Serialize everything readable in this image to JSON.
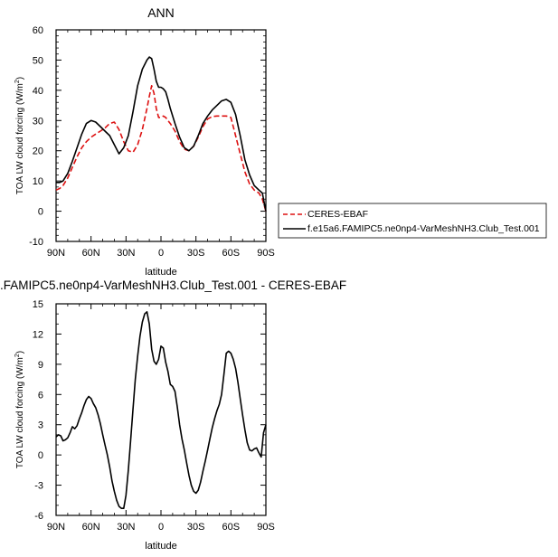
{
  "chart_data": [
    {
      "type": "line",
      "title": "ANN",
      "xlabel": "latitude",
      "ylabel_main": "TOA LW cloud forcing (W/m",
      "ylabel_sup": "2",
      "ylabel_close": ")",
      "xlim": [
        -90,
        90
      ],
      "ylim": [
        -10,
        60
      ],
      "x_ticks": [
        -90,
        -60,
        -30,
        0,
        30,
        60,
        90
      ],
      "x_tick_labels": [
        "90N",
        "60N",
        "30N",
        "0",
        "30S",
        "60S",
        "90S"
      ],
      "y_ticks": [
        -10,
        0,
        10,
        20,
        30,
        40,
        50,
        60
      ],
      "y_tick_labels": [
        "-10",
        "0",
        "10",
        "20",
        "30",
        "40",
        "50",
        "60"
      ],
      "legend_placement": "right, outside plot",
      "series": [
        {
          "name": "CERES-EBAF",
          "color": "#dd1111",
          "dash": "dashed",
          "x": [
            -90,
            -87,
            -84,
            -80,
            -76,
            -72,
            -68,
            -64,
            -60,
            -56,
            -52,
            -48,
            -44,
            -40,
            -36,
            -32,
            -28,
            -24,
            -20,
            -16,
            -12,
            -10,
            -8,
            -6,
            -4,
            -2,
            0,
            2,
            4,
            6,
            8,
            12,
            16,
            20,
            24,
            28,
            32,
            36,
            40,
            44,
            48,
            52,
            56,
            60,
            64,
            68,
            72,
            76,
            80,
            84,
            87,
            90
          ],
          "y": [
            7,
            7.5,
            8.5,
            11,
            14.5,
            18,
            21,
            23,
            24.5,
            25.5,
            26.5,
            27.5,
            29,
            29.5,
            27,
            23,
            20,
            19.5,
            22,
            27,
            34,
            38,
            41.5,
            39,
            34,
            31,
            31,
            31.5,
            31,
            30,
            29,
            26.5,
            23,
            20.5,
            20,
            21.5,
            24.5,
            28,
            30.5,
            31.3,
            31.5,
            31.5,
            31.5,
            31,
            25,
            19,
            13,
            9,
            7,
            6,
            4,
            0
          ]
        },
        {
          "name": "f.e15a6.FAMIPC5.ne0np4-VarMeshNH3.Club_Test.001",
          "color": "#000000",
          "dash": "solid",
          "x": [
            -90,
            -87,
            -84,
            -80,
            -76,
            -72,
            -68,
            -64,
            -60,
            -56,
            -52,
            -48,
            -44,
            -40,
            -36,
            -32,
            -28,
            -24,
            -20,
            -16,
            -12,
            -10,
            -8,
            -6,
            -4,
            -2,
            0,
            2,
            4,
            6,
            8,
            12,
            16,
            20,
            24,
            28,
            32,
            36,
            40,
            44,
            48,
            52,
            56,
            60,
            64,
            68,
            72,
            76,
            80,
            84,
            87,
            90
          ],
          "y": [
            9.5,
            9.5,
            10,
            12.5,
            16.5,
            21,
            25.5,
            29,
            30,
            29.5,
            28,
            26.5,
            25,
            22,
            19,
            21,
            25,
            33,
            41.5,
            47,
            50,
            51,
            50.5,
            47,
            43,
            41,
            41,
            40.5,
            39.5,
            37,
            34,
            29,
            24.5,
            21,
            20,
            21.5,
            25,
            29,
            31.5,
            33.5,
            35,
            36.5,
            37,
            36,
            32,
            25,
            17,
            12,
            8.5,
            7,
            6,
            0
          ]
        }
      ]
    },
    {
      "type": "line",
      "title": ".FAMIPC5.ne0np4-VarMeshNH3.Club_Test.001 - CERES-EBAF",
      "xlabel": "latitude",
      "ylabel_main": "TOA LW cloud forcing (W/m",
      "ylabel_sup": "2",
      "ylabel_close": ")",
      "xlim": [
        -90,
        90
      ],
      "ylim": [
        -6,
        15
      ],
      "x_ticks": [
        -90,
        -60,
        -30,
        0,
        30,
        60,
        90
      ],
      "x_tick_labels": [
        "90N",
        "60N",
        "30N",
        "0",
        "30S",
        "60S",
        "90S"
      ],
      "y_ticks": [
        -6,
        -3,
        0,
        3,
        6,
        9,
        12,
        15
      ],
      "y_tick_labels": [
        "-6",
        "-3",
        "0",
        "3",
        "6",
        "9",
        "12",
        "15"
      ],
      "series": [
        {
          "color": "#000000",
          "dash": "solid",
          "x": [
            -90,
            -88,
            -86,
            -84,
            -82,
            -80,
            -78,
            -76,
            -74,
            -72,
            -70,
            -68,
            -66,
            -64,
            -62,
            -60,
            -58,
            -56,
            -54,
            -52,
            -50,
            -48,
            -46,
            -44,
            -42,
            -40,
            -38,
            -36,
            -34,
            -32,
            -30,
            -28,
            -26,
            -24,
            -22,
            -20,
            -18,
            -16,
            -14,
            -12,
            -10,
            -8,
            -6,
            -4,
            -2,
            0,
            2,
            4,
            6,
            8,
            10,
            12,
            14,
            16,
            18,
            20,
            22,
            24,
            26,
            28,
            30,
            32,
            34,
            36,
            38,
            40,
            42,
            44,
            46,
            48,
            50,
            52,
            54,
            56,
            58,
            60,
            62,
            64,
            66,
            68,
            70,
            72,
            74,
            76,
            78,
            80,
            82,
            84,
            86,
            88,
            90
          ],
          "y": [
            1.8,
            2.0,
            1.9,
            1.4,
            1.5,
            1.7,
            2.2,
            2.8,
            2.6,
            2.9,
            3.6,
            4.2,
            4.9,
            5.5,
            5.8,
            5.6,
            5.1,
            4.7,
            4.0,
            3.1,
            2.0,
            1.0,
            0.0,
            -1.2,
            -2.6,
            -3.6,
            -4.5,
            -5.1,
            -5.3,
            -5.3,
            -4.0,
            -1.5,
            1.5,
            4.6,
            7.5,
            9.8,
            11.8,
            13.2,
            14.0,
            14.2,
            13.0,
            10.5,
            9.3,
            9.0,
            9.5,
            10.8,
            10.6,
            9.2,
            8.3,
            7.0,
            6.8,
            6.3,
            4.8,
            3.0,
            1.6,
            0.5,
            -0.8,
            -2.0,
            -3.0,
            -3.6,
            -3.8,
            -3.5,
            -2.7,
            -1.6,
            -0.6,
            0.5,
            1.6,
            2.7,
            3.6,
            4.4,
            5.0,
            6.0,
            8.0,
            10.1,
            10.3,
            10.1,
            9.5,
            8.6,
            7.2,
            5.6,
            4.0,
            2.5,
            1.2,
            0.5,
            0.4,
            0.6,
            0.7,
            0.2,
            -0.2,
            2.2,
            3.0
          ]
        }
      ]
    }
  ],
  "legend": {
    "items": [
      {
        "label": "CERES-EBAF"
      },
      {
        "label": "f.e15a6.FAMIPC5.ne0np4-VarMeshNH3.Club_Test.001"
      }
    ]
  }
}
